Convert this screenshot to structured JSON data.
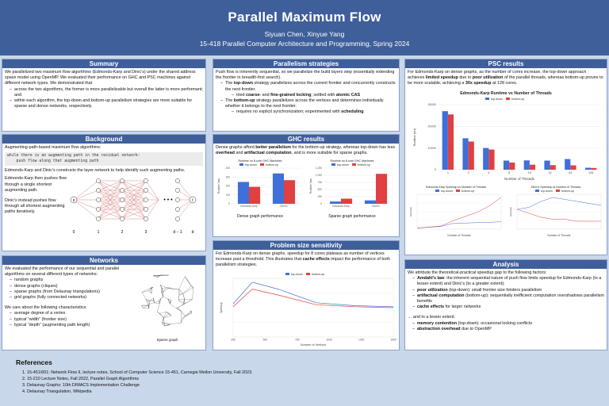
{
  "header": {
    "title": "Parallel Maximum Flow",
    "authors": "Siyuan Chen, Xinyue Yang",
    "course": "15-418 Parallel Computer Architecture and Programming, Spring 2024"
  },
  "summary": {
    "heading": "Summary",
    "intro": "We parallelized two maximum flow algorithms (Edmonds-Karp and Dinic's) under the shared address space model using OpenMP. We evaluated their performance on GHC and PSC machines against different network types. We demonstrated that",
    "bullets": [
      "across the two algorithms, the former is more parallelizable but overall the latter is more performant; and",
      "within each algorithm, the top-down and bottom-up parallelism strategies are more suitable for sparse and dense networks, respectively."
    ]
  },
  "background": {
    "heading": "Background",
    "intro": "Augmenting-path-based maximum flow algorithms:",
    "code_line1": "while there is an augmenting path in the residual network:",
    "code_line2": "    push flow along that augmenting path",
    "p1": "Edmonds-Karp and Dinic's constructs the layer network to help identify such augmenting paths.",
    "p2": "Edmonds-Karp then pushes flow through a single shortest augmenting path.",
    "p3": "Dinic's instead pushes flow through all shortest augmenting paths iteratively.",
    "layer_labels": [
      "0",
      "1",
      "2",
      "3",
      "d − 1",
      "d"
    ],
    "node_s": "s",
    "node_t": "t",
    "dots": "• • •"
  },
  "networks": {
    "heading": "Networks",
    "intro": "We evaluated the performance of our sequential and parallel algorithms on several different types of networks:",
    "types": [
      "random graphs",
      "dense graphs (cliques)",
      "sparse graphs (from Delaunay triangulations)",
      "grid graphs (fully connected networks)"
    ],
    "care": "We care about the following characteristics:",
    "chars": [
      "average degree of a vertex",
      "typical “width” (frontier size)",
      "typical “depth” (augmenting path length)"
    ],
    "sparse_caption": "Sparse graph"
  },
  "parallelism": {
    "heading": "Parallelism strategies",
    "intro": "Push flow is inherently sequential, so we parallelize the build layers step (essentially extending the frontier in breadth-first search).",
    "b1_pre": "The ",
    "b1_bold": "top-down",
    "b1_post": " strategy parallelizes across the current frontier and concurrently constructs the next frontier.",
    "b1_sub_pre": "tried ",
    "b1_sub_b1": "coarse-",
    "b1_sub_mid": " and ",
    "b1_sub_b2": "fine-grained locking",
    "b1_sub_mid2": "; settled with ",
    "b1_sub_b3": "atomic CAS",
    "b2_pre": "The ",
    "b2_bold": "bottom-up",
    "b2_post": " strategy parallelizes across the vertices and determines individually whether it belongs to the next frontier.",
    "b2_sub_pre": "requires no explicit synchronization; experimented with ",
    "b2_sub_bold": "scheduling"
  },
  "ghc": {
    "heading": "GHC results",
    "p_pre": "Dense graphs afford ",
    "p_b1": "better parallelism",
    "p_mid": " for the bottom-up strategy, whereas top-down has less ",
    "p_b2": "overhead",
    "p_mid2": " and ",
    "p_b3": "artifactual computation",
    "p_post": ", and is more suitable for sparse graphs.",
    "caption_dense": "Dense graph performance",
    "caption_sparse": "Sparse graph performance"
  },
  "problem": {
    "heading": "Problem size sensitivity",
    "p_pre": "For Edmonds-Karp on dense graphs, speedup for 8 cores plateaus as number of vertices increase past a threshold. This illustrates that ",
    "p_bold": "cache effects",
    "p_post": " impact the performance of both parallelism strategies."
  },
  "psc": {
    "heading": "PSC results",
    "p_pre": "For Edmonds-Karp on dense graphs, as the number of cores increase, the top-down approach achieves ",
    "p_b1": "limited speedup",
    "p_mid": " due to ",
    "p_b2": "poor utilization",
    "p_mid2": " of the parallel threads, whereas bottom-up proves to be more scalable, achieving a ",
    "p_b3": "30x speedup",
    "p_post": " at 128 cores."
  },
  "analysis": {
    "heading": "Analysis",
    "intro": "We attribute the theoretical-practical speedup gap to the following factors:",
    "f1_b": "Amdahl's law",
    "f1": ": the inherent sequential nature of push flow limits speedup for Edmonds-Karp (to a lesser extent) and Dinic's (to a greater extent);",
    "f2_b": "poor utilization",
    "f2": " (top-down): small frontier size hinders parallelism",
    "f3_b": "artifactual computation",
    "f3": " (bottom-up): sequentially inefficient computation overshadows parallelism benefits",
    "f4_b": "cache effects",
    "f4": " for larger networks",
    "lesser": "… and to a lesser extent:",
    "l1_b": "memory contention",
    "l1": " (top-down): occasional locking conflicts",
    "l2_b": "abstraction overhead",
    "l2": " due to OpenMP"
  },
  "references": {
    "heading": "References",
    "items": [
      "15-451/651: Network Flow II, lecture notes, School of Computer Science 15-451, Carnegie Mellon University, Fall 2023.",
      "15-210 Lecture Notes, Fall 2022, Parallel Graph Algorithms",
      "Delaunay Graphs: 10th DIMACS Implementation Challenge",
      "Delaunay Triangulation, Wikipedia"
    ]
  },
  "colors": {
    "top_down": "#3f6fd8",
    "bottom_up": "#e04040",
    "header": "#3f5f9a"
  },
  "chart_data": [
    {
      "type": "bar",
      "title": "Runtime on 8-core GHC Machines",
      "legend": [
        "top-down",
        "bottom-up"
      ],
      "categories": [
        "Edmonds-Karp",
        "Dinic's"
      ],
      "series": [
        {
          "name": "top-down",
          "values": [
            245,
            340
          ]
        },
        {
          "name": "bottom-up",
          "values": [
            190,
            265
          ]
        }
      ],
      "ylim": [
        0,
        400
      ],
      "yticks": [
        "0",
        "100",
        "200",
        "300",
        "400"
      ],
      "ylabel": "Runtime (ms)"
    },
    {
      "type": "bar",
      "title": "Runtime on 8-core GHC Machines",
      "legend": [
        "top-down",
        "bottom-up"
      ],
      "categories": [
        "Edmonds-Karp",
        "Dinic's"
      ],
      "series": [
        {
          "name": "top-down",
          "values": [
            80,
            120
          ]
        },
        {
          "name": "bottom-up",
          "values": [
            180,
            1050
          ]
        }
      ],
      "ylim": [
        0,
        1250
      ],
      "yticks": [
        "0",
        "250",
        "500",
        "750",
        "1,000",
        "1,250"
      ],
      "ylabel": "Runtime (ms)"
    },
    {
      "type": "line",
      "legend": [
        "top-down",
        "bottom-up"
      ],
      "x": [
        250,
        400,
        600,
        900,
        1200,
        1500
      ],
      "xticks": [
        "250",
        "500",
        "750",
        "1000",
        "1250",
        "1500"
      ],
      "series": [
        {
          "name": "top-down",
          "values": [
            3.4,
            5.6,
            4.9,
            3.5,
            3.2,
            3.1
          ]
        },
        {
          "name": "bottom-up",
          "values": [
            3.1,
            4.9,
            4.3,
            3.3,
            3.1,
            3.0
          ]
        }
      ],
      "xlim": [
        250,
        1500
      ],
      "ylim": [
        0,
        6
      ],
      "xlabel": "Number of Vertices",
      "ylabel": "Speedup"
    },
    {
      "type": "bar",
      "title": "Edmonds-Karp Runtime vs Number of Threads",
      "legend": [
        "top-down",
        "bottom-up"
      ],
      "categories": [
        "1",
        "2",
        "4",
        "8",
        "16",
        "32",
        "64",
        "128"
      ],
      "series": [
        {
          "name": "top-down",
          "values": [
            27000,
            14500,
            10000,
            4200,
            4300,
            4200,
            4900,
            900
          ]
        },
        {
          "name": "bottom-up",
          "values": [
            25500,
            13000,
            9300,
            3300,
            2300,
            2100,
            2000,
            800
          ]
        }
      ],
      "ylim": [
        0,
        30000
      ],
      "yticks": [
        "0",
        "10000",
        "20000",
        "30000"
      ],
      "xlabel": "Number of Threads",
      "ylabel": "Runtime (ms)"
    },
    {
      "type": "line",
      "title": "Edmonds-Karp Speedup vs Number of Threads",
      "legend": [
        "top-down",
        "bottom-up"
      ],
      "x": [
        1,
        2,
        4,
        8,
        16,
        32,
        64,
        128
      ],
      "series": [
        {
          "name": "top-down",
          "values": [
            1,
            1.8,
            2.6,
            5.5,
            5.8,
            6.2,
            6.5,
            7
          ]
        },
        {
          "name": "bottom-up",
          "values": [
            1,
            2,
            3,
            8,
            12,
            16,
            22,
            30
          ]
        }
      ],
      "xlabel": "Number of Threads",
      "ylabel": "Speedup"
    },
    {
      "type": "line",
      "title": "Dinic's Speedup vs Number of Threads",
      "legend": [
        "top-down",
        "bottom-up"
      ],
      "x": [
        1,
        2,
        4,
        8,
        16,
        32,
        64,
        128
      ],
      "series": [
        {
          "name": "top-down",
          "values": [
            1,
            1.1,
            1.4,
            1.6,
            1.5,
            1.4,
            1.3,
            1.2
          ]
        },
        {
          "name": "bottom-up",
          "values": [
            1,
            0.8,
            0.6,
            0.5,
            0.5,
            0.4,
            0.4,
            0.4
          ]
        }
      ],
      "xlabel": "Number of Threads",
      "ylabel": "Speedup"
    }
  ]
}
